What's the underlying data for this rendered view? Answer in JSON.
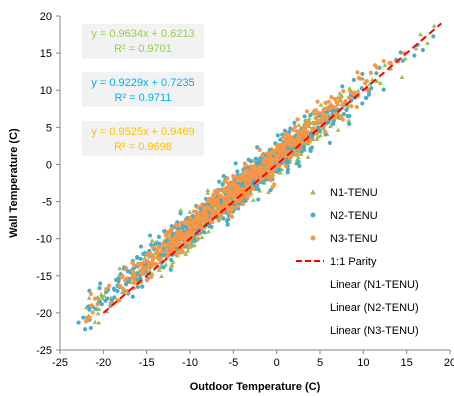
{
  "chart_data": {
    "type": "scatter",
    "title": "",
    "xlabel": "Outdoor Temperature (C)",
    "ylabel": "Wall Temperature (C)",
    "xlim": [
      -25,
      20
    ],
    "ylim": [
      -25,
      20
    ],
    "x_ticks": [
      "-25",
      "-20",
      "-15",
      "-10",
      "-5",
      "0",
      "5",
      "10",
      "15",
      "20"
    ],
    "y_ticks": [
      "20",
      "15",
      "10",
      "5",
      "0",
      "-5",
      "-10",
      "-15",
      "-20",
      "-25"
    ],
    "grid": "off",
    "legend_position": "right",
    "series": [
      {
        "name": "N1-TENU",
        "marker": "triangle",
        "color": "#9bbb59",
        "slope": 0.9634,
        "intercept": 0.6213,
        "x_range": [
          -22,
          19
        ],
        "spread": 1.2
      },
      {
        "name": "N2-TENU",
        "marker": "circle",
        "color": "#4bacc6",
        "slope": 0.9229,
        "intercept": 0.7235,
        "x_range": [
          -23,
          19
        ],
        "spread": 1.3
      },
      {
        "name": "N3-TENU",
        "marker": "circle",
        "color": "#f79646",
        "slope": 0.9525,
        "intercept": 0.9469,
        "x_range": [
          -22,
          19
        ],
        "spread": 1.1
      }
    ],
    "parity_line": {
      "name": "1:1 Parity",
      "color": "#ff0000",
      "x": [
        -20,
        19
      ],
      "y": [
        -20,
        19
      ]
    },
    "trendlines": [
      {
        "name": "Linear (N1-TENU)",
        "equation": "y = 0.9634x + 0.6213",
        "r2": "R² = 0.9701",
        "color": "#92d050"
      },
      {
        "name": "Linear (N2-TENU)",
        "equation": "y = 0.9229x + 0.7235",
        "r2": "R² = 0.9711",
        "color": "#00b0f0"
      },
      {
        "name": "Linear (N3-TENU)",
        "equation": "y = 0.9525x + 0.9469",
        "r2": "R² = 0.9698",
        "color": "#ffc000"
      }
    ]
  }
}
